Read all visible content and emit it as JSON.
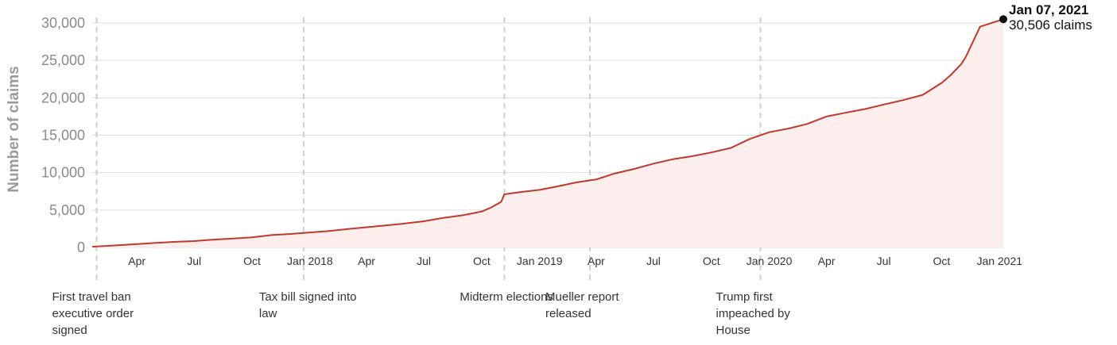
{
  "chart_data": {
    "type": "area",
    "ylabel": "Number of claims",
    "xlabel": "",
    "ylim": [
      0,
      30000
    ],
    "y_ticks": [
      0,
      5000,
      10000,
      15000,
      20000,
      25000,
      30000
    ],
    "y_tick_labels": [
      "0",
      "5,000",
      "10,000",
      "15,000",
      "20,000",
      "25,000",
      "30,000"
    ],
    "x_range": [
      "2017-01-20",
      "2021-01-07"
    ],
    "x_ticks": [
      {
        "date": "2017-04-01",
        "label": "Apr"
      },
      {
        "date": "2017-07-01",
        "label": "Jul"
      },
      {
        "date": "2017-10-01",
        "label": "Oct"
      },
      {
        "date": "2018-01-01",
        "label": "Jan 2018"
      },
      {
        "date": "2018-04-01",
        "label": "Apr"
      },
      {
        "date": "2018-07-01",
        "label": "Jul"
      },
      {
        "date": "2018-10-01",
        "label": "Oct"
      },
      {
        "date": "2019-01-01",
        "label": "Jan 2019"
      },
      {
        "date": "2019-04-01",
        "label": "Apr"
      },
      {
        "date": "2019-07-01",
        "label": "Jul"
      },
      {
        "date": "2019-10-01",
        "label": "Oct"
      },
      {
        "date": "2020-01-01",
        "label": "Jan 2020"
      },
      {
        "date": "2020-04-01",
        "label": "Apr"
      },
      {
        "date": "2020-07-01",
        "label": "Jul"
      },
      {
        "date": "2020-10-01",
        "label": "Oct"
      },
      {
        "date": "2021-01-01",
        "label": "Jan 2021"
      }
    ],
    "grid": true,
    "colors": {
      "line": "#c0392b",
      "fill": "#fdeeee",
      "grid": "#dddddd",
      "event_line": "#cfcfcf"
    },
    "series": [
      {
        "x": [
          "2017-01-20",
          "2017-03-01",
          "2017-04-01",
          "2017-05-01",
          "2017-06-01",
          "2017-07-01",
          "2017-08-01",
          "2017-09-01",
          "2017-10-01",
          "2017-11-01",
          "2017-12-01",
          "2018-01-01",
          "2018-02-01",
          "2018-03-01",
          "2018-04-01",
          "2018-05-01",
          "2018-06-01",
          "2018-07-01",
          "2018-08-01",
          "2018-09-01",
          "2018-10-01",
          "2018-10-15",
          "2018-11-01",
          "2018-11-06",
          "2018-12-01",
          "2019-01-01",
          "2019-02-01",
          "2019-03-01",
          "2019-04-01",
          "2019-05-01",
          "2019-06-01",
          "2019-07-01",
          "2019-08-01",
          "2019-09-01",
          "2019-10-01",
          "2019-11-01",
          "2019-12-01",
          "2020-01-01",
          "2020-02-01",
          "2020-03-01",
          "2020-04-01",
          "2020-05-01",
          "2020-06-01",
          "2020-07-01",
          "2020-08-01",
          "2020-09-01",
          "2020-10-01",
          "2020-10-15",
          "2020-11-01",
          "2020-11-08",
          "2020-12-01",
          "2021-01-07"
        ],
        "y": [
          100,
          300,
          450,
          600,
          750,
          850,
          1050,
          1200,
          1350,
          1650,
          1800,
          2000,
          2200,
          2450,
          2700,
          2950,
          3200,
          3500,
          3950,
          4300,
          4800,
          5300,
          6100,
          7100,
          7400,
          7700,
          8200,
          8700,
          9100,
          9900,
          10500,
          11200,
          11800,
          12200,
          12700,
          13300,
          14500,
          15400,
          15900,
          16500,
          17500,
          18000,
          18500,
          19100,
          19700,
          20400,
          22000,
          23000,
          24500,
          25400,
          29500,
          30506
        ]
      }
    ],
    "events": [
      {
        "date": "2017-01-27",
        "label_lines": [
          "First travel ban",
          "executive order",
          "signed"
        ]
      },
      {
        "date": "2017-12-22",
        "label_lines": [
          "Tax bill signed into",
          "law"
        ]
      },
      {
        "date": "2018-11-06",
        "label_lines": [
          "Midterm elections"
        ]
      },
      {
        "date": "2019-03-22",
        "label_lines": [
          "Mueller report",
          "released"
        ]
      },
      {
        "date": "2019-12-18",
        "label_lines": [
          "Trump first",
          "impeached by",
          "House"
        ]
      }
    ],
    "end_annotation": {
      "date_label": "Jan 07, 2021",
      "value_label": "30,506 claims"
    }
  }
}
